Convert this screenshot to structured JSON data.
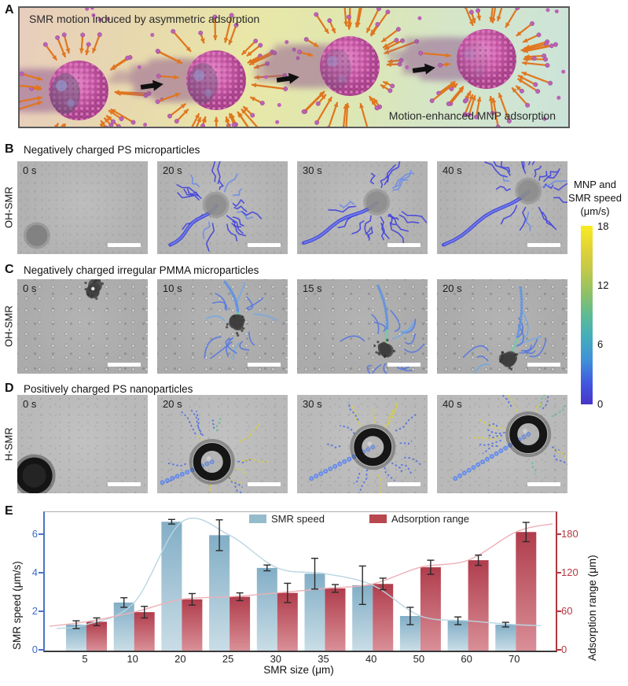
{
  "figure": {
    "panels": {
      "a": {
        "letter": "A",
        "title": "SMR motion induced by asymmetric adsorption",
        "caption": "Motion-enhanced MNP adsorption",
        "spheres": [
          [
            75,
            105
          ],
          [
            250,
            92
          ],
          [
            420,
            74
          ],
          [
            594,
            65
          ]
        ],
        "black_arrows": [
          [
            154,
            99
          ],
          [
            327,
            90
          ],
          [
            500,
            78
          ]
        ]
      },
      "b": {
        "letter": "B",
        "title": "Negatively charged PS microparticles",
        "row_label": "OH-SMR",
        "frames": [
          {
            "time": "0 s",
            "p": [
              0.15,
              0.8
            ],
            "tracks": 0,
            "traj": null
          },
          {
            "time": "20 s",
            "p": [
              0.45,
              0.47
            ],
            "tracks": 22,
            "traj": [
              0.1,
              0.9
            ]
          },
          {
            "time": "30 s",
            "p": [
              0.61,
              0.44
            ],
            "tracks": 22,
            "traj": [
              0.05,
              0.88
            ]
          },
          {
            "time": "40 s",
            "p": [
              0.7,
              0.32
            ],
            "tracks": 22,
            "traj": [
              0.05,
              0.9
            ]
          }
        ]
      },
      "c": {
        "letter": "C",
        "title": "Negatively charged irregular PMMA microparticles",
        "row_label": "OH-SMR",
        "frames": [
          {
            "time": "0 s",
            "p": [
              0.58,
              0.1
            ],
            "tracks": 0,
            "traj": null
          },
          {
            "time": "10 s",
            "p": [
              0.61,
              0.48
            ],
            "tracks": 14,
            "traj": [
              0.52,
              0.03
            ]
          },
          {
            "time": "15 s",
            "p": [
              0.67,
              0.73
            ],
            "tracks": 14,
            "traj": [
              0.62,
              0.07
            ]
          },
          {
            "time": "20 s",
            "p": [
              0.55,
              0.85
            ],
            "tracks": 14,
            "traj": [
              0.64,
              0.09
            ]
          }
        ]
      },
      "d": {
        "letter": "D",
        "title": "Positively charged PS nanoparticles",
        "row_label": "H-SMR",
        "frames": [
          {
            "time": "0 s",
            "p": [
              0.13,
              0.82
            ],
            "tracks": 0,
            "traj": null
          },
          {
            "time": "20 s",
            "p": [
              0.42,
              0.68
            ],
            "tracks": 17,
            "traj": [
              0.04,
              0.89
            ]
          },
          {
            "time": "30 s",
            "p": [
              0.58,
              0.53
            ],
            "tracks": 17,
            "traj": [
              0.11,
              0.85
            ]
          },
          {
            "time": "40 s",
            "p": [
              0.7,
              0.4
            ],
            "tracks": 17,
            "traj": [
              0.14,
              0.85
            ]
          }
        ]
      },
      "e": {
        "letter": "E"
      }
    },
    "colorbar": {
      "label_lines": [
        "MNP and",
        "SMR speed",
        "(μm/s)"
      ],
      "ticks": [
        "18",
        "12",
        "6",
        "0"
      ]
    }
  },
  "chart_data": {
    "type": "bar",
    "categories": [
      "5",
      "10",
      "20",
      "25",
      "30",
      "35",
      "40",
      "50",
      "60",
      "70"
    ],
    "series": [
      {
        "name": "SMR speed",
        "axis": "left",
        "color_top": "#82aec6",
        "color_bottom": "#c9dde6",
        "legend_color": "#94bccb",
        "trend_color": "#b9d6e2",
        "values": [
          1.35,
          2.5,
          6.7,
          6.0,
          4.3,
          4.0,
          3.4,
          1.8,
          1.55,
          1.35
        ],
        "errors": [
          0.2,
          0.25,
          0.12,
          0.8,
          0.15,
          0.8,
          1.0,
          0.45,
          0.2,
          0.12
        ]
      },
      {
        "name": "Adsorption range",
        "axis": "right",
        "color_top": "#b03d4c",
        "color_bottom": "#d98f97",
        "legend_color": "#b8474f",
        "trend_color": "#edb0b6",
        "values": [
          45,
          60,
          80,
          84,
          90,
          97,
          104,
          130,
          141,
          185
        ],
        "errors": [
          6,
          9,
          9,
          6,
          15,
          6,
          9,
          11,
          8,
          15
        ]
      }
    ],
    "xlabel": "SMR size (μm)",
    "ylabel_left": "SMR speed (μm/s)",
    "ylabel_right": "Adsorption range (μm)",
    "ylim_left": [
      0,
      7.2
    ],
    "ylim_right": [
      0,
      216
    ],
    "yticks_left": [
      0,
      2,
      4,
      6
    ],
    "yticks_right": [
      0,
      60,
      120,
      180
    ],
    "legend_position": "top-inside",
    "grid": false
  }
}
